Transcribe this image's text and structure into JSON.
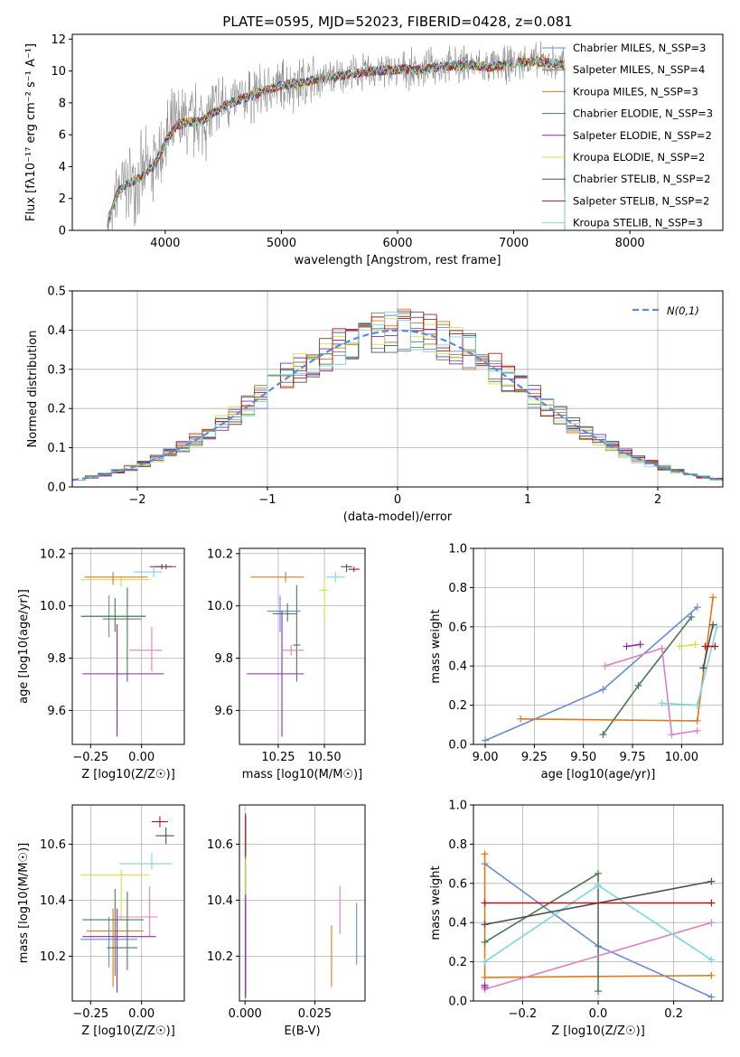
{
  "title": "PLATE=0595, MJD=52023, FIBERID=0428, z=0.081",
  "colors": {
    "chabrier_miles": "#6a8ad8",
    "salpeter_miles": "#8a7a50",
    "kroupa_miles": "#e07818",
    "chabrier_elodie": "#4a7a52",
    "salpeter_elodie": "#8a28b0",
    "kroupa_elodie": "#d8e040",
    "chabrier_stelib": "#505050",
    "salpeter_stelib": "#b01818",
    "kroupa_stelib": "#78d8e0",
    "data": "#808080",
    "pink": "#e080c0",
    "normal": "#5a8ad8"
  },
  "chart_data": [
    {
      "type": "line",
      "xlabel": "wavelength [Angstrom, rest frame]",
      "ylabel": "Flux [fλ10⁻¹⁷ erg cm⁻² s⁻¹ A⁻¹]",
      "xlim": [
        3200,
        8800
      ],
      "ylim": [
        0,
        12.3
      ],
      "xticks": [
        "4000",
        "5000",
        "6000",
        "7000",
        "8000"
      ],
      "yticks": [
        "0",
        "2",
        "4",
        "6",
        "8",
        "10",
        "12"
      ],
      "legend_position": "right",
      "legend": [
        "Chabrier MILES, N_SSP=3",
        "Salpeter MILES, N_SSP=4",
        "Kroupa MILES, N_SSP=3",
        "Chabrier ELODIE, N_SSP=3",
        "Salpeter ELODIE, N_SSP=2",
        "Kroupa ELODIE, N_SSP=2",
        "Chabrier STELIB, N_SSP=2",
        "Salpeter STELIB, N_SSP=2",
        "Kroupa STELIB, N_SSP=3"
      ],
      "continuum": {
        "x": [
          3500,
          3600,
          3700,
          3800,
          3900,
          4000,
          4100,
          4200,
          4300,
          4400,
          4500,
          4600,
          4800,
          5000,
          5200,
          5400,
          5600,
          5800,
          6000,
          6200,
          6400,
          6600,
          6800,
          7000,
          7200,
          7400
        ],
        "y": [
          0.5,
          2.5,
          3.0,
          3.4,
          4.0,
          5.5,
          6.6,
          6.8,
          6.8,
          7.3,
          7.8,
          8.1,
          8.6,
          9.1,
          9.3,
          9.6,
          9.8,
          10.0,
          10.1,
          10.1,
          10.3,
          10.4,
          10.2,
          10.5,
          10.6,
          10.4
        ]
      }
    },
    {
      "type": "histogram",
      "xlabel": "(data-model)/error",
      "ylabel": "Normed distribution",
      "xlim": [
        -2.5,
        2.5
      ],
      "ylim": [
        0,
        0.5
      ],
      "xticks": [
        "−2",
        "−1",
        "0",
        "1",
        "2"
      ],
      "yticks": [
        "0.0",
        "0.1",
        "0.2",
        "0.3",
        "0.4",
        "0.5"
      ],
      "legend": [
        "N(0,1)"
      ],
      "bin_width": 0.1,
      "mean_profile": "normal(0,1) with bins from -2.5 to 2.5"
    },
    {
      "type": "scatter",
      "xlabel": "Z [log10(Z/Z☉)]",
      "ylabel": "age  [log10(age/yr)]",
      "xlim": [
        -0.34,
        0.21
      ],
      "ylim": [
        9.47,
        10.22
      ],
      "xticks": [
        "−0.25",
        "0.00"
      ],
      "yticks": [
        "9.6",
        "9.8",
        "10.0",
        "10.2"
      ]
    },
    {
      "type": "scatter",
      "xlabel": "mass [log10(M/M☉)]",
      "xlim": [
        10.04,
        10.72
      ],
      "ylim": [
        9.47,
        10.22
      ],
      "xticks": [
        "10.25",
        "10.50"
      ],
      "yticks": [
        "9.6",
        "9.8",
        "10.0",
        "10.2"
      ]
    },
    {
      "type": "line",
      "xlabel": "age  [log10(age/yr)]",
      "ylabel": "mass weight",
      "xlim": [
        8.94,
        10.21
      ],
      "ylim": [
        0,
        1
      ],
      "xticks": [
        "9.00",
        "9.25",
        "9.50",
        "9.75",
        "10.00"
      ],
      "yticks": [
        "0.0",
        "0.2",
        "0.4",
        "0.6",
        "0.8",
        "1.0"
      ]
    },
    {
      "type": "scatter",
      "xlabel": "Z [log10(Z/Z☉)]",
      "ylabel": "mass [log10(M/M☉)]",
      "xlim": [
        -0.34,
        0.21
      ],
      "ylim": [
        10.04,
        10.74
      ],
      "xticks": [
        "−0.25",
        "0.00"
      ],
      "yticks": [
        "10.2",
        "10.4",
        "10.6"
      ]
    },
    {
      "type": "scatter",
      "xlabel": "E(B-V)",
      "xlim": [
        -0.002,
        0.043
      ],
      "ylim": [
        10.04,
        10.74
      ],
      "xticks": [
        "0.000",
        "0.025"
      ],
      "yticks": [
        "10.2",
        "10.4",
        "10.6"
      ]
    },
    {
      "type": "line",
      "xlabel": "Z [log10(Z/Z☉)]",
      "ylabel": "mass weight",
      "xlim": [
        -0.33,
        0.33
      ],
      "ylim": [
        0,
        1
      ],
      "xticks": [
        "−0.2",
        "0.0",
        "0.2"
      ],
      "yticks": [
        "0.0",
        "0.2",
        "0.4",
        "0.6",
        "0.8",
        "1.0"
      ]
    }
  ]
}
